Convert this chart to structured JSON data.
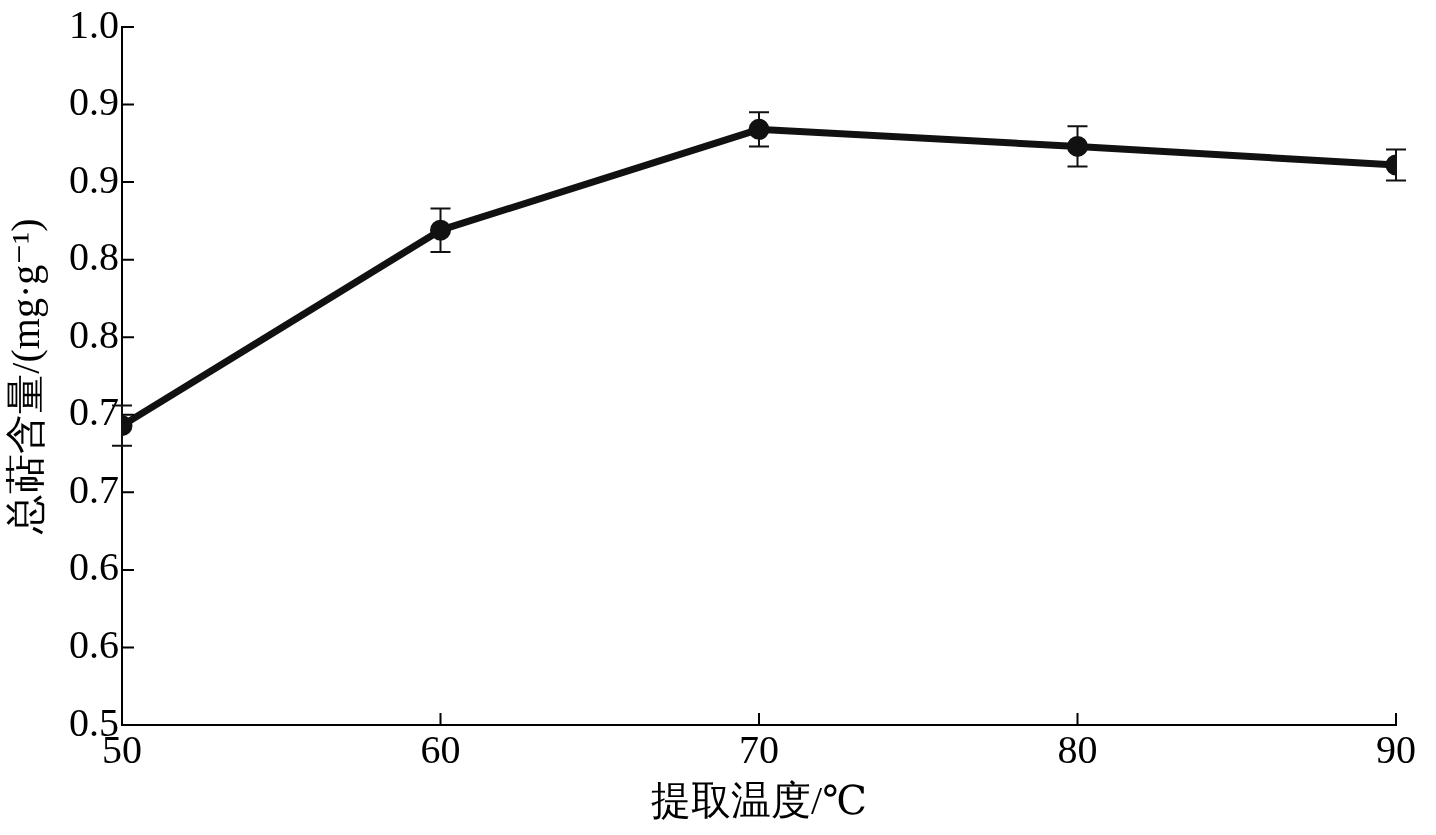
{
  "chart_data": {
    "type": "line",
    "xlabel": "提取温度/℃",
    "ylabel": "总萜含量/(mg·g⁻¹)",
    "x": [
      50,
      60,
      70,
      80,
      90
    ],
    "series": [
      {
        "color": "#111111",
        "values": [
          0.743,
          0.869,
          0.934,
          0.923,
          0.911
        ],
        "errors": [
          0.013,
          0.014,
          0.011,
          0.013,
          0.01
        ]
      }
    ],
    "xlim": [
      50,
      90
    ],
    "xticks": [
      50,
      60,
      70,
      80,
      90
    ],
    "ylim": [
      0.55,
      1.0
    ],
    "yticks": [
      {
        "value": 0.55,
        "label": "0.5"
      },
      {
        "value": 0.6,
        "label": "0.6"
      },
      {
        "value": 0.65,
        "label": "0.6"
      },
      {
        "value": 0.7,
        "label": "0.7"
      },
      {
        "value": 0.75,
        "label": "0.7"
      },
      {
        "value": 0.8,
        "label": "0.8"
      },
      {
        "value": 0.85,
        "label": "0.8"
      },
      {
        "value": 0.9,
        "label": "0.9"
      },
      {
        "value": 0.95,
        "label": "0.9"
      },
      {
        "value": 1.0,
        "label": "1.0"
      }
    ],
    "grid": false,
    "legend": false,
    "marker": "circle",
    "line_style": "solid"
  }
}
